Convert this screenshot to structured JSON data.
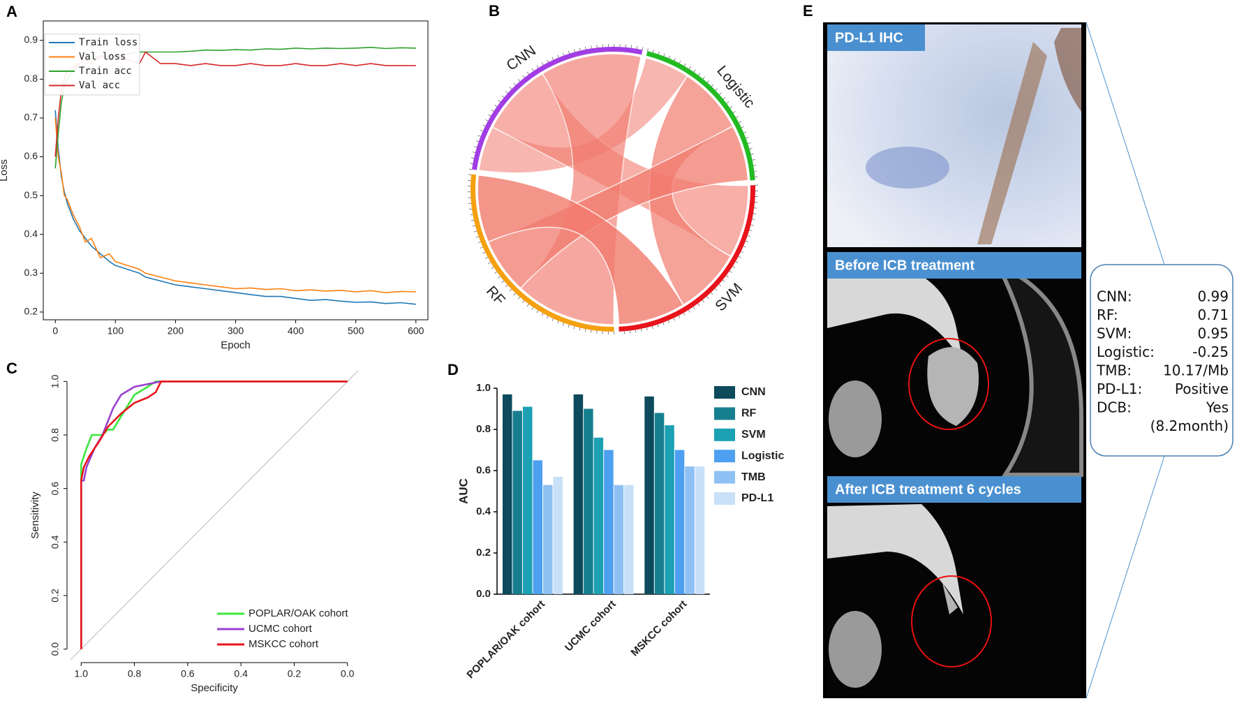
{
  "chart_data": [
    {
      "type": "line",
      "panel_label": "A",
      "xlabel": "Epoch",
      "ylabel": "Loss",
      "x": [
        0,
        5,
        10,
        15,
        20,
        30,
        40,
        50,
        60,
        75,
        90,
        100,
        120,
        140,
        150,
        175,
        200,
        225,
        250,
        275,
        300,
        325,
        350,
        375,
        400,
        425,
        450,
        475,
        500,
        525,
        550,
        575,
        600
      ],
      "series": [
        {
          "name": "Train loss",
          "color": "#1f77b4",
          "values": [
            0.72,
            0.62,
            0.55,
            0.51,
            0.48,
            0.44,
            0.41,
            0.39,
            0.37,
            0.35,
            0.33,
            0.32,
            0.31,
            0.3,
            0.29,
            0.28,
            0.27,
            0.265,
            0.26,
            0.255,
            0.25,
            0.245,
            0.24,
            0.24,
            0.235,
            0.23,
            0.232,
            0.228,
            0.225,
            0.226,
            0.222,
            0.224,
            0.22
          ]
        },
        {
          "name": "Val loss",
          "color": "#ff7f0e",
          "values": [
            0.7,
            0.6,
            0.56,
            0.5,
            0.49,
            0.45,
            0.42,
            0.38,
            0.39,
            0.34,
            0.35,
            0.33,
            0.32,
            0.31,
            0.3,
            0.29,
            0.28,
            0.275,
            0.27,
            0.265,
            0.26,
            0.262,
            0.258,
            0.26,
            0.255,
            0.257,
            0.254,
            0.256,
            0.252,
            0.255,
            0.25,
            0.253,
            0.252
          ]
        },
        {
          "name": "Train acc",
          "color": "#2ca02c",
          "values": [
            0.57,
            0.66,
            0.74,
            0.78,
            0.8,
            0.82,
            0.84,
            0.85,
            0.85,
            0.86,
            0.86,
            0.86,
            0.865,
            0.87,
            0.87,
            0.87,
            0.87,
            0.872,
            0.875,
            0.874,
            0.876,
            0.875,
            0.878,
            0.877,
            0.88,
            0.878,
            0.88,
            0.879,
            0.88,
            0.882,
            0.879,
            0.881,
            0.88
          ]
        },
        {
          "name": "Val acc",
          "color": "#d62728",
          "values": [
            0.6,
            0.7,
            0.77,
            0.8,
            0.82,
            0.83,
            0.84,
            0.85,
            0.84,
            0.86,
            0.85,
            0.86,
            0.85,
            0.84,
            0.87,
            0.84,
            0.84,
            0.835,
            0.84,
            0.835,
            0.835,
            0.84,
            0.835,
            0.835,
            0.84,
            0.835,
            0.835,
            0.84,
            0.835,
            0.84,
            0.835,
            0.835,
            0.835
          ]
        }
      ],
      "xlim": [
        -20,
        620
      ],
      "xticks": [
        0,
        100,
        200,
        300,
        400,
        500,
        600
      ],
      "ylim": [
        0.18,
        0.95
      ],
      "yticks": [
        0.2,
        0.3,
        0.4,
        0.5,
        0.6,
        0.7,
        0.8,
        0.9
      ],
      "legend": "upper left"
    },
    {
      "type": "chord",
      "panel_label": "B",
      "groups": [
        {
          "name": "CNN",
          "color": "#a23de4"
        },
        {
          "name": "Logistic",
          "color": "#22bb22"
        },
        {
          "name": "SVM",
          "color": "#e8141c"
        },
        {
          "name": "RF",
          "color": "#f5a010"
        }
      ],
      "links": [
        {
          "source": "CNN",
          "target": "Logistic",
          "value": 0.8
        },
        {
          "source": "CNN",
          "target": "SVM",
          "value": 1.3
        },
        {
          "source": "CNN",
          "target": "RF",
          "value": 1.8
        },
        {
          "source": "Logistic",
          "target": "SVM",
          "value": 1.2
        },
        {
          "source": "Logistic",
          "target": "RF",
          "value": 1.0
        },
        {
          "source": "SVM",
          "target": "RF",
          "value": 1.2
        }
      ],
      "link_color": "#f27b6e"
    },
    {
      "type": "line",
      "panel_label": "C",
      "xlabel": "Specificity",
      "ylabel": "Sensitivity",
      "series": [
        {
          "name": "POPLAR/OAK cohort",
          "color": "#3de63d",
          "x": [
            1,
            1,
            0.98,
            0.96,
            0.92,
            0.9,
            0.88,
            0.85,
            0.8,
            0.75,
            0.72,
            0
          ],
          "values": [
            0,
            0.69,
            0.75,
            0.8,
            0.8,
            0.82,
            0.82,
            0.87,
            0.95,
            0.98,
            1,
            1
          ]
        },
        {
          "name": "UCMC cohort",
          "color": "#9a40d0",
          "x": [
            1,
            1,
            0.99,
            0.98,
            0.95,
            0.92,
            0.88,
            0.85,
            0.8,
            0.7,
            0
          ],
          "values": [
            0,
            0.63,
            0.63,
            0.68,
            0.75,
            0.8,
            0.9,
            0.95,
            0.98,
            1,
            1
          ]
        },
        {
          "name": "MSKCC cohort",
          "color": "#e8141c",
          "x": [
            1,
            1,
            0.99,
            0.97,
            0.93,
            0.9,
            0.85,
            0.8,
            0.75,
            0.72,
            0.7,
            0
          ],
          "values": [
            0,
            0.63,
            0.68,
            0.72,
            0.78,
            0.83,
            0.88,
            0.92,
            0.94,
            0.96,
            1,
            1
          ]
        }
      ],
      "xlim": [
        1.04,
        -0.04
      ],
      "xticks": [
        {
          "value": 1,
          "label": "1.0"
        },
        0.8,
        0.6,
        0.4,
        0.2,
        {
          "value": 0,
          "label": "0.0"
        }
      ],
      "ylim": [
        -0.04,
        1.04
      ],
      "yticks": [
        {
          "value": 0,
          "label": "0.0"
        },
        0.2,
        0.4,
        0.6,
        0.8,
        {
          "value": 1,
          "label": "1.0"
        }
      ],
      "legend": "lower right"
    },
    {
      "type": "grouped_bar",
      "panel_label": "D",
      "ylabel": "AUC",
      "categories": [
        "POPLAR/OAK cohort",
        "UCMC cohort",
        "MSKCC cohort"
      ],
      "series": [
        {
          "name": "CNN",
          "color": "#0d4a5c",
          "values": [
            0.97,
            0.97,
            0.96
          ]
        },
        {
          "name": "RF",
          "color": "#167f8f",
          "values": [
            0.89,
            0.9,
            0.88
          ]
        },
        {
          "name": "SVM",
          "color": "#1ca0b3",
          "values": [
            0.91,
            0.76,
            0.82
          ]
        },
        {
          "name": "Logistic",
          "color": "#4da0ef",
          "values": [
            0.65,
            0.7,
            0.7
          ]
        },
        {
          "name": "TMB",
          "color": "#8fc0f3",
          "values": [
            0.53,
            0.53,
            0.62
          ]
        },
        {
          "name": "PD-L1",
          "color": "#c9e0f9",
          "values": [
            0.57,
            0.53,
            0.62
          ]
        }
      ],
      "ylim": [
        0,
        1
      ],
      "yticks": [
        {
          "value": 0,
          "label": "0.0"
        },
        0.2,
        0.4,
        0.6,
        0.8,
        {
          "value": 1,
          "label": "1.0"
        }
      ],
      "legend": "right"
    }
  ],
  "panel_e": {
    "panel_label": "E",
    "captions": [
      "PD-L1 IHC",
      "Before ICB treatment",
      "After ICB treatment 6 cycles"
    ],
    "scores": [
      [
        "CNN:",
        "0.99"
      ],
      [
        "RF:",
        "0.71"
      ],
      [
        "SVM:",
        "0.95"
      ],
      [
        "Logistic:",
        "-0.25"
      ],
      [
        "TMB:",
        "10.17/Mb"
      ],
      [
        "PD-L1:",
        "Positive"
      ],
      [
        "DCB:",
        "Yes"
      ]
    ],
    "note": "(8.2month)"
  }
}
